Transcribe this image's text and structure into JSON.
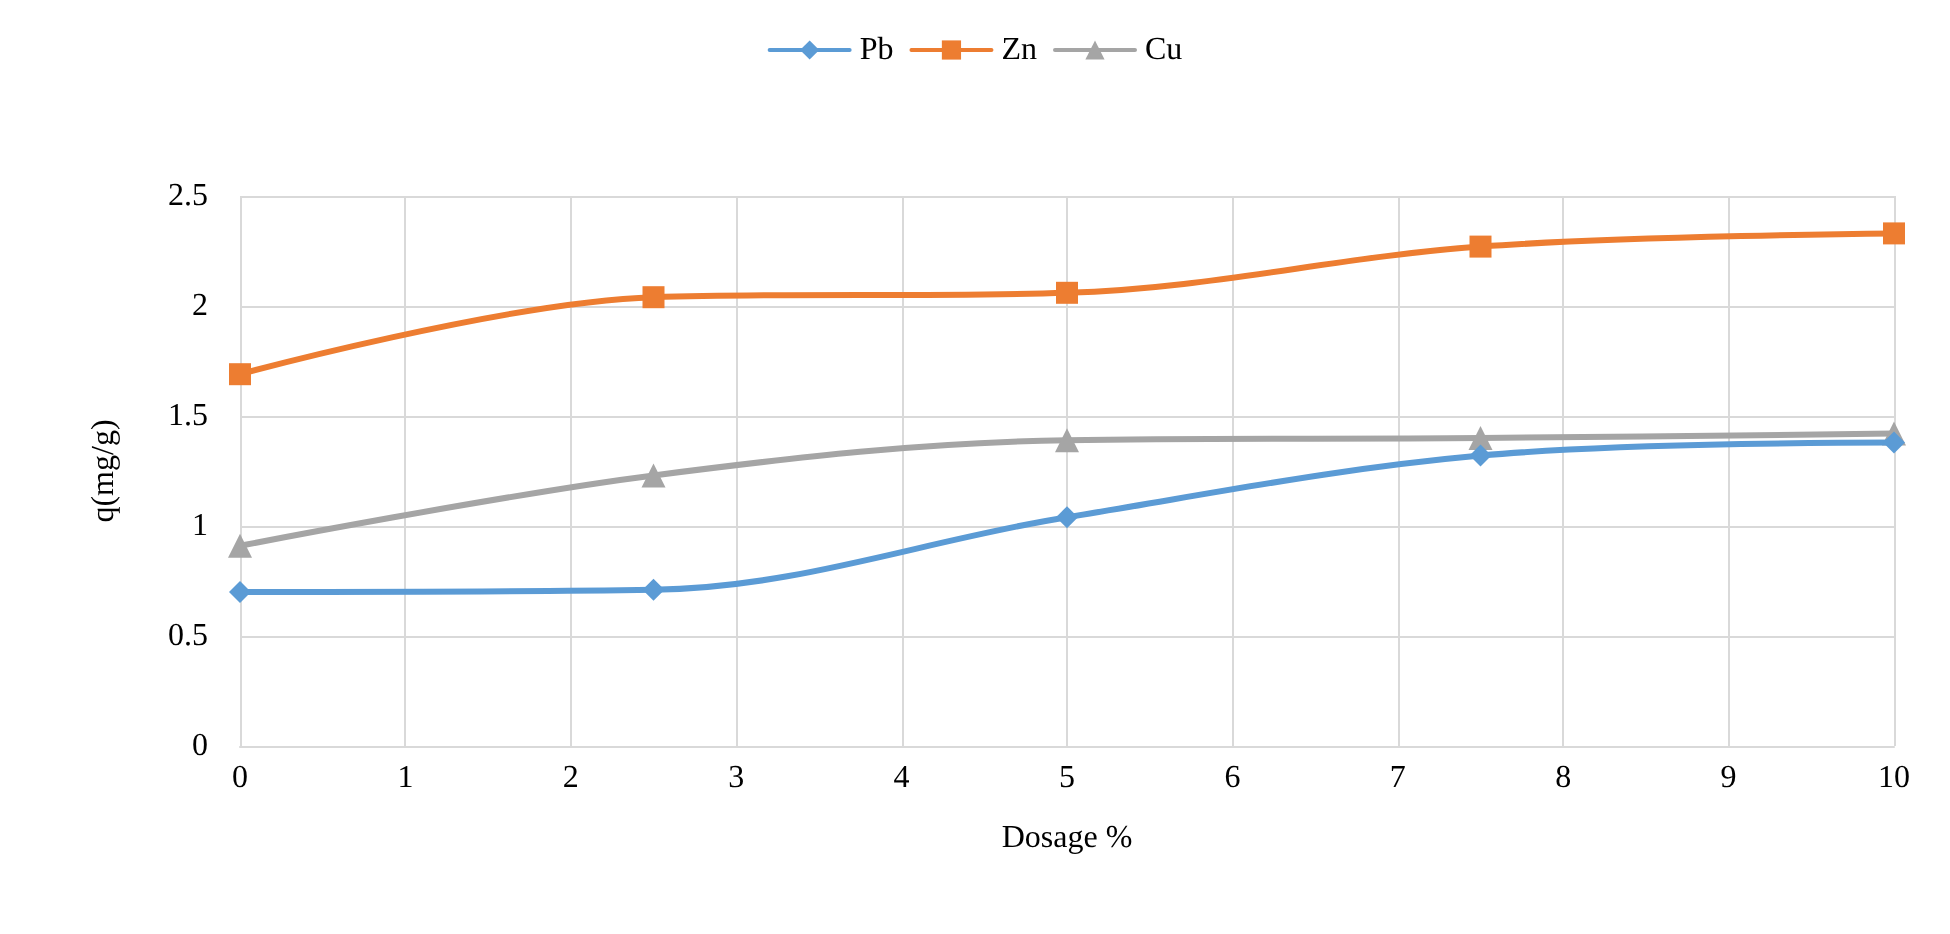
{
  "chart_data": {
    "type": "line",
    "xlabel": "Dosage %",
    "ylabel": "q(mg/g)",
    "x": [
      0,
      2.5,
      5,
      7.5,
      10
    ],
    "series": [
      {
        "name": "Pb",
        "color": "#5b9bd5",
        "marker": "diamond",
        "values": [
          0.7,
          0.71,
          1.04,
          1.32,
          1.38
        ]
      },
      {
        "name": "Zn",
        "color": "#ed7d31",
        "marker": "square",
        "values": [
          1.69,
          2.04,
          2.06,
          2.27,
          2.33
        ]
      },
      {
        "name": "Cu",
        "color": "#a5a5a5",
        "marker": "triangle",
        "values": [
          0.91,
          1.23,
          1.39,
          1.4,
          1.42
        ]
      }
    ],
    "xlim": [
      0,
      10
    ],
    "xticks": [
      0,
      1,
      2,
      3,
      4,
      5,
      6,
      7,
      8,
      9,
      10
    ],
    "ylim": [
      0,
      2.5
    ],
    "yticks": [
      0,
      0.5,
      1,
      1.5,
      2,
      2.5
    ],
    "grid": true,
    "legend": "top",
    "line_style": "solid"
  }
}
